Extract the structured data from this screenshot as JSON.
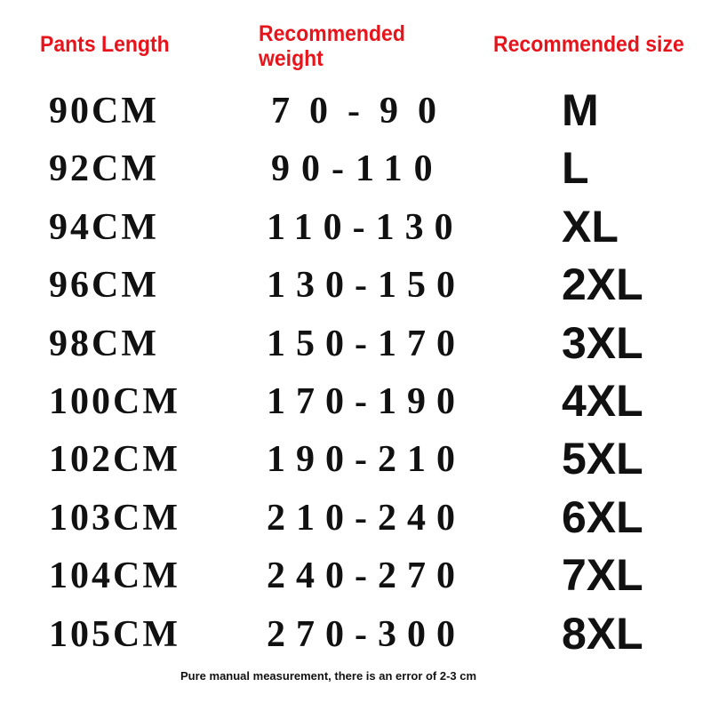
{
  "headers": {
    "length": "Pants Length",
    "weight_line1": "Recommended",
    "weight_line2": "weight",
    "size": "Recommended size"
  },
  "rows": [
    {
      "length": "90CM",
      "weight": "70-90",
      "size": "M"
    },
    {
      "length": "92CM",
      "weight": "90-110",
      "size": "L"
    },
    {
      "length": "94CM",
      "weight": "110-130",
      "size": "XL"
    },
    {
      "length": "96CM",
      "weight": "130-150",
      "size": "2XL"
    },
    {
      "length": "98CM",
      "weight": "150-170",
      "size": "3XL"
    },
    {
      "length": "100CM",
      "weight": "170-190",
      "size": "4XL"
    },
    {
      "length": "102CM",
      "weight": "190-210",
      "size": "5XL"
    },
    {
      "length": "103CM",
      "weight": "210-240",
      "size": "6XL"
    },
    {
      "length": "104CM",
      "weight": "240-270",
      "size": "7XL"
    },
    {
      "length": "105CM",
      "weight": "270-300",
      "size": "8XL"
    }
  ],
  "note": "Pure manual measurement, there is an error of 2-3 cm",
  "colors": {
    "header": "#e8141c",
    "text": "#111111"
  }
}
